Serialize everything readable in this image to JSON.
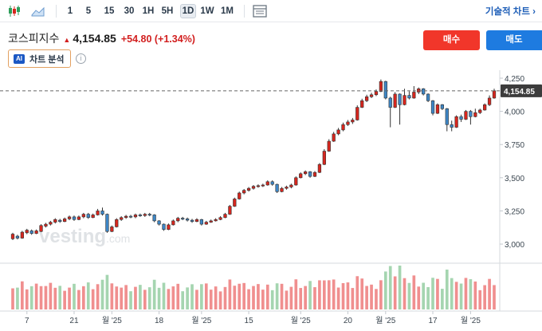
{
  "toolbar": {
    "timeframes": [
      "1",
      "5",
      "15",
      "30",
      "1H",
      "5H",
      "1D",
      "1W",
      "1M"
    ],
    "active_timeframe": "1D",
    "advanced_chart_label": "기술적 차트 ›"
  },
  "header": {
    "stock_name": "코스피지수",
    "arrow": "▲",
    "price": "4,154.85",
    "change": "+54.80 (+1.34%)",
    "buy_label": "매수",
    "sell_label": "매도",
    "ai_badge": "AI",
    "ai_label": "차트 분석",
    "info_symbol": "i"
  },
  "watermark": {
    "text": "vesting",
    "suffix": ".com"
  },
  "colors": {
    "up": "#d7261e",
    "down": "#3d86c6",
    "vol_up": "#f08f8f",
    "vol_down": "#a5d5b0",
    "buy": "#f1362a",
    "sell": "#1e7be0"
  },
  "chart_data": {
    "type": "candlestick",
    "ylim": [
      2880,
      4310
    ],
    "y_ticks": [
      "4,250",
      "4,000",
      "3,750",
      "3,500",
      "3,250",
      "3,000"
    ],
    "y_tick_values": [
      4250,
      4000,
      3750,
      3500,
      3250,
      3000
    ],
    "last_price": 4154.85,
    "last_price_label": "4,154.85",
    "x_labels": [
      "7",
      "21",
      "월 '25",
      "18",
      "월 '25",
      "15",
      "월 '25",
      "20",
      "월 '25",
      "17",
      "월 '25"
    ],
    "x_label_index": [
      3,
      13,
      21,
      31,
      40,
      50,
      61,
      71,
      79,
      89,
      97
    ],
    "candles": [
      [
        3040,
        3075,
        3030,
        3085
      ],
      [
        3060,
        3045,
        3035,
        3070
      ],
      [
        3045,
        3090,
        3040,
        3100
      ],
      [
        3085,
        3105,
        3075,
        3115
      ],
      [
        3100,
        3080,
        3070,
        3110
      ],
      [
        3080,
        3100,
        3075,
        3110
      ],
      [
        3095,
        3140,
        3090,
        3150
      ],
      [
        3135,
        3150,
        3125,
        3160
      ],
      [
        3150,
        3165,
        3140,
        3175
      ],
      [
        3165,
        3185,
        3155,
        3195
      ],
      [
        3180,
        3170,
        3160,
        3190
      ],
      [
        3170,
        3190,
        3165,
        3200
      ],
      [
        3190,
        3205,
        3180,
        3215
      ],
      [
        3205,
        3185,
        3175,
        3215
      ],
      [
        3185,
        3205,
        3180,
        3215
      ],
      [
        3205,
        3225,
        3195,
        3235
      ],
      [
        3225,
        3200,
        3190,
        3235
      ],
      [
        3200,
        3220,
        3195,
        3230
      ],
      [
        3220,
        3250,
        3215,
        3265
      ],
      [
        3250,
        3225,
        3215,
        3275
      ],
      [
        3225,
        3095,
        3085,
        3230
      ],
      [
        3095,
        3130,
        3090,
        3140
      ],
      [
        3130,
        3185,
        3125,
        3195
      ],
      [
        3185,
        3200,
        3175,
        3210
      ],
      [
        3200,
        3210,
        3190,
        3220
      ],
      [
        3210,
        3205,
        3195,
        3220
      ],
      [
        3205,
        3220,
        3195,
        3230
      ],
      [
        3220,
        3215,
        3205,
        3230
      ],
      [
        3215,
        3225,
        3205,
        3235
      ],
      [
        3225,
        3220,
        3210,
        3235
      ],
      [
        3220,
        3175,
        3165,
        3225
      ],
      [
        3175,
        3150,
        3140,
        3180
      ],
      [
        3150,
        3110,
        3100,
        3155
      ],
      [
        3110,
        3145,
        3105,
        3155
      ],
      [
        3145,
        3175,
        3140,
        3185
      ],
      [
        3175,
        3195,
        3165,
        3205
      ],
      [
        3195,
        3190,
        3180,
        3205
      ],
      [
        3190,
        3180,
        3170,
        3200
      ],
      [
        3180,
        3170,
        3160,
        3190
      ],
      [
        3170,
        3185,
        3165,
        3195
      ],
      [
        3185,
        3150,
        3140,
        3190
      ],
      [
        3150,
        3165,
        3145,
        3175
      ],
      [
        3165,
        3175,
        3160,
        3185
      ],
      [
        3175,
        3185,
        3170,
        3195
      ],
      [
        3185,
        3200,
        3180,
        3210
      ],
      [
        3200,
        3225,
        3195,
        3235
      ],
      [
        3225,
        3285,
        3220,
        3295
      ],
      [
        3285,
        3340,
        3280,
        3350
      ],
      [
        3340,
        3385,
        3335,
        3395
      ],
      [
        3385,
        3405,
        3375,
        3415
      ],
      [
        3405,
        3420,
        3395,
        3430
      ],
      [
        3420,
        3435,
        3410,
        3445
      ],
      [
        3435,
        3440,
        3425,
        3450
      ],
      [
        3440,
        3445,
        3430,
        3455
      ],
      [
        3445,
        3470,
        3440,
        3480
      ],
      [
        3470,
        3450,
        3440,
        3480
      ],
      [
        3450,
        3395,
        3385,
        3455
      ],
      [
        3395,
        3420,
        3390,
        3430
      ],
      [
        3420,
        3430,
        3410,
        3440
      ],
      [
        3430,
        3445,
        3420,
        3455
      ],
      [
        3445,
        3500,
        3440,
        3510
      ],
      [
        3500,
        3530,
        3495,
        3540
      ],
      [
        3530,
        3545,
        3520,
        3555
      ],
      [
        3545,
        3510,
        3500,
        3550
      ],
      [
        3510,
        3540,
        3505,
        3550
      ],
      [
        3540,
        3600,
        3535,
        3610
      ],
      [
        3600,
        3700,
        3595,
        3715
      ],
      [
        3700,
        3775,
        3695,
        3790
      ],
      [
        3775,
        3830,
        3770,
        3845
      ],
      [
        3830,
        3860,
        3820,
        3875
      ],
      [
        3860,
        3900,
        3850,
        3915
      ],
      [
        3900,
        3920,
        3890,
        3935
      ],
      [
        3920,
        3935,
        3905,
        3950
      ],
      [
        3935,
        4030,
        3930,
        4045
      ],
      [
        4030,
        4080,
        4025,
        4095
      ],
      [
        4080,
        4110,
        4070,
        4125
      ],
      [
        4110,
        4125,
        4100,
        4140
      ],
      [
        4125,
        4150,
        4115,
        4165
      ],
      [
        4150,
        4225,
        4145,
        4240
      ],
      [
        4225,
        4100,
        4090,
        4230
      ],
      [
        4100,
        4030,
        3880,
        4110
      ],
      [
        4030,
        4130,
        4025,
        4145
      ],
      [
        4130,
        4050,
        3900,
        4135
      ],
      [
        4050,
        4120,
        4045,
        4170
      ],
      [
        4120,
        4100,
        4090,
        4150
      ],
      [
        4100,
        4145,
        4095,
        4190
      ],
      [
        4145,
        4170,
        4130,
        4180
      ],
      [
        4170,
        4130,
        4120,
        4175
      ],
      [
        4130,
        4080,
        4070,
        4135
      ],
      [
        4080,
        3985,
        3970,
        4085
      ],
      [
        3985,
        4050,
        3980,
        4060
      ],
      [
        4050,
        4020,
        4010,
        4055
      ],
      [
        4020,
        3900,
        3850,
        4025
      ],
      [
        3900,
        3880,
        3850,
        3930
      ],
      [
        3880,
        3960,
        3875,
        3970
      ],
      [
        3960,
        3940,
        3920,
        3975
      ],
      [
        3940,
        4000,
        3935,
        4010
      ],
      [
        4000,
        3960,
        3900,
        4010
      ],
      [
        3960,
        3990,
        3955,
        4020
      ],
      [
        3990,
        4010,
        3980,
        4020
      ],
      [
        4010,
        4050,
        4005,
        4060
      ],
      [
        4050,
        4100,
        4040,
        4120
      ],
      [
        4100,
        4155,
        4095,
        4170
      ]
    ]
  }
}
